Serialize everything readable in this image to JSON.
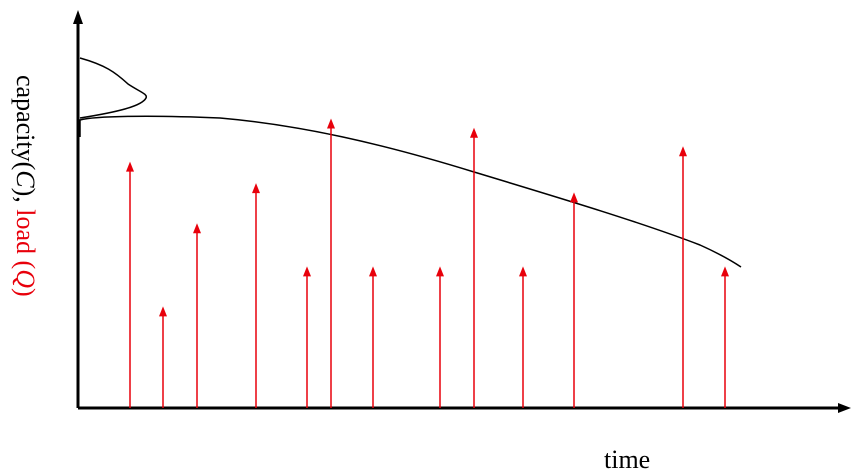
{
  "labels": {
    "y_prefix": "capacity(",
    "y_c": "C",
    "y_mid": "), ",
    "y_load": "load (",
    "y_q": "Q",
    "y_close": ")",
    "x": "time"
  },
  "colors": {
    "axis": "#000000",
    "capacity": "#000000",
    "load": "#e8000b"
  },
  "chart_data": {
    "type": "diagram",
    "elements": [
      "capacity curve decreasing over time",
      "probability density of initial capacity",
      "load pulses as arrows"
    ],
    "load_pulses": [
      {
        "t": 130,
        "q": 0.8
      },
      {
        "t": 163,
        "q": 0.33
      },
      {
        "t": 197,
        "q": 0.6
      },
      {
        "t": 256,
        "q": 0.73
      },
      {
        "t": 307,
        "q": 0.46
      },
      {
        "t": 331,
        "q": 0.94
      },
      {
        "t": 373,
        "q": 0.46
      },
      {
        "t": 440,
        "q": 0.46
      },
      {
        "t": 474,
        "q": 0.91
      },
      {
        "t": 523,
        "q": 0.46
      },
      {
        "t": 574,
        "q": 0.7
      },
      {
        "t": 683,
        "q": 0.85
      },
      {
        "t": 725,
        "q": 0.46
      }
    ]
  }
}
